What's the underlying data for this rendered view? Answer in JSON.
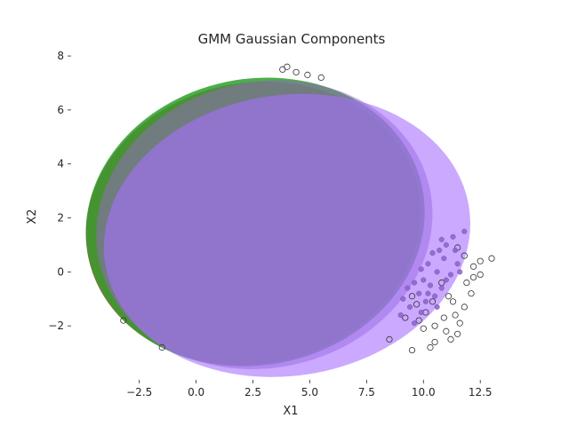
{
  "chart_data": {
    "type": "scatter",
    "title": "GMM Gaussian Components",
    "xlabel": "X1",
    "ylabel": "X2",
    "xlim": [
      -5.5,
      13.9
    ],
    "ylim": [
      -4.0,
      8.2
    ],
    "xticks": [
      -2.5,
      0.0,
      2.5,
      5.0,
      7.5,
      10.0,
      12.5
    ],
    "xtick_labels": [
      "−2.5",
      "0.0",
      "2.5",
      "5.0",
      "7.5",
      "10.0",
      "12.5"
    ],
    "yticks": [
      -2,
      0,
      2,
      4,
      6,
      8
    ],
    "ytick_labels": [
      "−2",
      "0",
      "2",
      "4",
      "6",
      "8"
    ],
    "grid": false,
    "components": [
      {
        "color": "#d62728",
        "center": [
          2.5,
          1.8
        ],
        "width": 14.8,
        "height": 10.4,
        "angle": 12,
        "alpha": 0.8
      },
      {
        "color": "#2ca02c",
        "center": [
          2.6,
          1.85
        ],
        "width": 15.0,
        "height": 10.6,
        "angle": 12,
        "alpha": 0.85
      },
      {
        "color": "#9467bd",
        "center": [
          3.0,
          1.75
        ],
        "width": 14.9,
        "height": 10.6,
        "angle": 13,
        "alpha": 0.55
      },
      {
        "color": "#a770ff",
        "center": [
          4.0,
          1.35
        ],
        "width": 16.2,
        "height": 10.4,
        "angle": 9,
        "alpha": 0.6
      }
    ],
    "points_open": [
      [
        3.8,
        7.5
      ],
      [
        4.0,
        7.6
      ],
      [
        4.4,
        7.4
      ],
      [
        4.9,
        7.3
      ],
      [
        5.5,
        7.2
      ],
      [
        -3.2,
        -1.8
      ],
      [
        -1.5,
        -2.8
      ],
      [
        8.5,
        -2.5
      ],
      [
        9.5,
        -2.9
      ],
      [
        10.3,
        -2.8
      ],
      [
        10.5,
        -2.6
      ],
      [
        11.2,
        -2.5
      ],
      [
        11.5,
        -2.3
      ],
      [
        11.0,
        -2.2
      ],
      [
        10.5,
        -2.0
      ],
      [
        9.8,
        -1.8
      ],
      [
        9.2,
        -1.7
      ],
      [
        10.1,
        -1.5
      ],
      [
        11.4,
        -1.6
      ],
      [
        11.8,
        -1.3
      ],
      [
        12.1,
        -0.8
      ],
      [
        11.9,
        -0.4
      ],
      [
        12.2,
        -0.2
      ],
      [
        12.5,
        0.4
      ],
      [
        13.0,
        0.5
      ],
      [
        12.2,
        0.2
      ],
      [
        11.8,
        0.6
      ],
      [
        11.5,
        0.9
      ],
      [
        10.8,
        -0.4
      ],
      [
        11.1,
        -0.9
      ],
      [
        10.4,
        -1.1
      ],
      [
        9.7,
        -1.2
      ],
      [
        9.5,
        -0.9
      ],
      [
        10.9,
        -1.7
      ],
      [
        11.6,
        -1.9
      ],
      [
        10.0,
        -2.1
      ],
      [
        12.5,
        -0.1
      ],
      [
        11.3,
        -1.1
      ]
    ],
    "points_filled": [
      [
        11.8,
        1.5
      ],
      [
        11.3,
        1.3
      ],
      [
        11.0,
        1.0
      ],
      [
        10.7,
        0.8
      ],
      [
        10.4,
        0.7
      ],
      [
        10.9,
        0.5
      ],
      [
        11.5,
        0.3
      ],
      [
        10.2,
        0.3
      ],
      [
        9.9,
        0.1
      ],
      [
        10.6,
        0.0
      ],
      [
        11.2,
        -0.1
      ],
      [
        10.0,
        -0.3
      ],
      [
        9.6,
        -0.4
      ],
      [
        10.3,
        -0.5
      ],
      [
        10.8,
        -0.6
      ],
      [
        9.3,
        -0.6
      ],
      [
        9.8,
        -0.8
      ],
      [
        10.5,
        -0.9
      ],
      [
        9.1,
        -1.0
      ],
      [
        10.1,
        -1.1
      ],
      [
        9.4,
        -1.3
      ],
      [
        9.9,
        -1.5
      ],
      [
        9.0,
        -1.6
      ],
      [
        9.6,
        -1.9
      ],
      [
        10.6,
        -1.3
      ],
      [
        11.4,
        0.8
      ],
      [
        10.8,
        1.2
      ],
      [
        11.6,
        0.0
      ],
      [
        11.0,
        -0.3
      ],
      [
        10.2,
        -0.8
      ]
    ]
  }
}
